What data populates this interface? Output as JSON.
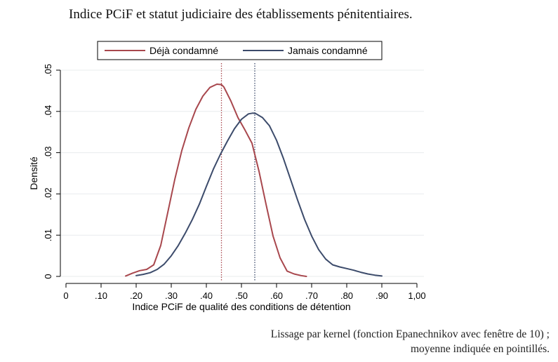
{
  "chart_data": {
    "type": "line",
    "title": "Indice PCiF et statut judiciaire des établissements pénitentiaires.",
    "xlabel": "Indice PCiF de qualité des conditions de détention",
    "ylabel": "Densité",
    "xlim": [
      0,
      1.0
    ],
    "ylim": [
      0,
      0.05
    ],
    "x_ticks": [
      0,
      0.1,
      0.2,
      0.3,
      0.4,
      0.5,
      0.6,
      0.7,
      0.8,
      0.9,
      1.0
    ],
    "x_tick_labels": [
      "0",
      ".10",
      ".20",
      ".30",
      ".40",
      ".50",
      ".60",
      ".70",
      ".80",
      ".90",
      "1,00"
    ],
    "y_ticks": [
      0,
      0.01,
      0.02,
      0.03,
      0.04,
      0.05
    ],
    "y_tick_labels": [
      "0",
      ".01",
      ".02",
      ".03",
      ".04",
      ".05"
    ],
    "grid": true,
    "legend_position": "top",
    "series": [
      {
        "name": "Déjà condamné",
        "color": "#a8474d",
        "mean": 0.443,
        "x": [
          0.17,
          0.19,
          0.21,
          0.23,
          0.25,
          0.27,
          0.29,
          0.31,
          0.33,
          0.35,
          0.37,
          0.39,
          0.41,
          0.43,
          0.443,
          0.45,
          0.47,
          0.49,
          0.51,
          0.53,
          0.55,
          0.57,
          0.59,
          0.61,
          0.63,
          0.65,
          0.67,
          0.685
        ],
        "values": [
          0.0001,
          0.0008,
          0.0014,
          0.0017,
          0.0028,
          0.0075,
          0.0155,
          0.0235,
          0.0305,
          0.036,
          0.0405,
          0.0437,
          0.0458,
          0.0466,
          0.0465,
          0.0459,
          0.0425,
          0.0385,
          0.0355,
          0.0323,
          0.0255,
          0.0175,
          0.0098,
          0.0045,
          0.0013,
          0.0006,
          0.0002,
          0.0
        ]
      },
      {
        "name": "Jamais condamné",
        "color": "#3c4b6b",
        "mean": 0.538,
        "x": [
          0.2,
          0.22,
          0.24,
          0.26,
          0.28,
          0.3,
          0.32,
          0.34,
          0.36,
          0.38,
          0.4,
          0.42,
          0.44,
          0.46,
          0.48,
          0.5,
          0.52,
          0.533,
          0.54,
          0.56,
          0.58,
          0.6,
          0.62,
          0.64,
          0.66,
          0.68,
          0.7,
          0.72,
          0.74,
          0.76,
          0.78,
          0.8,
          0.82,
          0.84,
          0.86,
          0.88,
          0.9
        ],
        "values": [
          0.0002,
          0.0005,
          0.0009,
          0.0017,
          0.003,
          0.005,
          0.0075,
          0.0105,
          0.0138,
          0.0175,
          0.0218,
          0.026,
          0.0296,
          0.0328,
          0.0358,
          0.0381,
          0.0394,
          0.0396,
          0.0395,
          0.0385,
          0.0365,
          0.033,
          0.0285,
          0.0235,
          0.0185,
          0.0138,
          0.0098,
          0.0065,
          0.0042,
          0.0028,
          0.0023,
          0.0019,
          0.0015,
          0.001,
          0.0006,
          0.0003,
          0.0001
        ]
      }
    ]
  },
  "caption": {
    "line1": "Lissage par kernel (fonction Epanechnikov avec fenêtre de 10) ;",
    "line2": "moyenne indiquée en pointillés."
  }
}
